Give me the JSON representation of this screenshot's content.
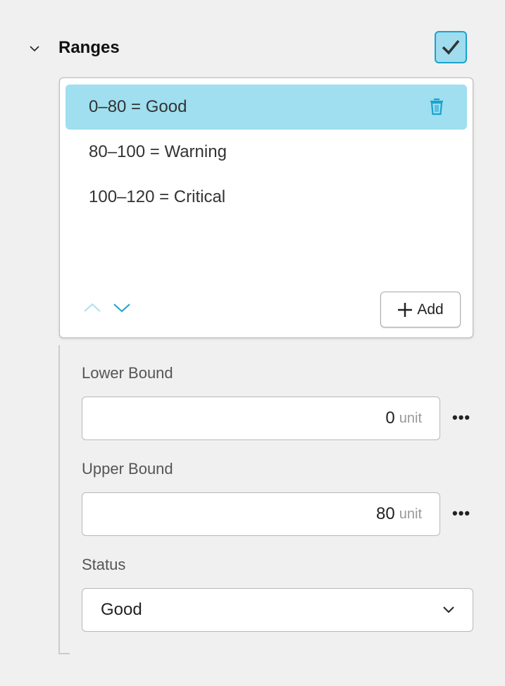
{
  "section": {
    "title": "Ranges",
    "expanded": true,
    "enabled": true
  },
  "ranges": {
    "items": [
      {
        "label": "0–80 = Good",
        "selected": true
      },
      {
        "label": "80–100 = Warning",
        "selected": false
      },
      {
        "label": "100–120 = Critical",
        "selected": false
      }
    ],
    "add_label": "Add"
  },
  "lower_bound": {
    "label": "Lower Bound",
    "value": "0",
    "unit": "unit",
    "menu": "•••"
  },
  "upper_bound": {
    "label": "Upper Bound",
    "value": "80",
    "unit": "unit",
    "menu": "•••"
  },
  "status": {
    "label": "Status",
    "value": "Good"
  },
  "colors": {
    "accent": "#1aa3cf",
    "selection": "#9fdfef"
  }
}
